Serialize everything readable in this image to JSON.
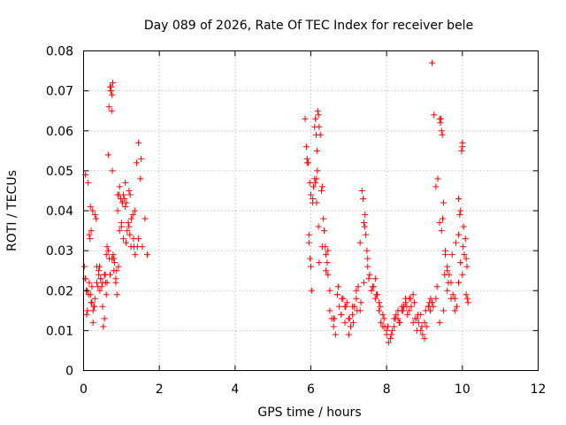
{
  "chart_data": {
    "type": "scatter",
    "title": "Day 089 of 2026, Rate Of TEC Index for receiver bele",
    "xlabel": "GPS time / hours",
    "ylabel": "ROTI / TECUs",
    "xlim": [
      0,
      12
    ],
    "ylim": [
      0,
      0.08
    ],
    "xticks": [
      "0",
      "2",
      "4",
      "6",
      "8",
      "10",
      "12"
    ],
    "yticks": [
      "0",
      "0.01",
      "0.02",
      "0.03",
      "0.04",
      "0.05",
      "0.06",
      "0.07",
      "0.08"
    ],
    "grid": true,
    "marker": "plus",
    "color": "#ff0000",
    "series": [
      {
        "name": "ROTI",
        "x": [
          0.02,
          0.04,
          0.05,
          0.07,
          0.1,
          0.12,
          0.13,
          0.15,
          0.17,
          0.18,
          0.2,
          0.22,
          0.24,
          0.25,
          0.27,
          0.3,
          0.33,
          0.35,
          0.38,
          0.4,
          0.43,
          0.45,
          0.48,
          0.5,
          0.52,
          0.55,
          0.57,
          0.6,
          0.62,
          0.65,
          0.67,
          0.7,
          0.72,
          0.74,
          0.76,
          0.78,
          0.8,
          0.82,
          0.85,
          0.87,
          0.9,
          0.93,
          0.95,
          0.98,
          1.0,
          1.03,
          1.05,
          1.08,
          1.1,
          1.13,
          1.15,
          1.18,
          1.2,
          1.23,
          1.26,
          1.3,
          1.33,
          1.36,
          1.4,
          1.45,
          1.5,
          1.55,
          1.62,
          1.68,
          0.1,
          0.15,
          0.2,
          0.25,
          0.3,
          0.35,
          0.4,
          0.5,
          0.55,
          0.6,
          0.65,
          0.7,
          0.75,
          0.8,
          0.85,
          0.9,
          0.95,
          1.0,
          1.05,
          1.1,
          1.2,
          1.25,
          1.35,
          1.45,
          0.08,
          0.18,
          0.28,
          0.45,
          0.62,
          0.72,
          0.73,
          0.75,
          0.77,
          0.92,
          1.02,
          1.22,
          1.42,
          1.52,
          0.05,
          0.22,
          0.42,
          0.58,
          0.68,
          0.88,
          1.12,
          1.32,
          5.85,
          5.88,
          5.9,
          5.93,
          5.95,
          5.98,
          6.0,
          6.02,
          6.05,
          6.07,
          6.1,
          6.12,
          6.15,
          6.17,
          6.2,
          6.22,
          6.25,
          6.28,
          6.3,
          6.33,
          6.35,
          6.38,
          6.4,
          6.43,
          6.45,
          6.5,
          6.55,
          6.6,
          6.65,
          6.7,
          6.75,
          6.8,
          6.85,
          6.9,
          6.95,
          7.0,
          7.05,
          7.1,
          7.15,
          7.2,
          7.25,
          7.3,
          7.35,
          7.38,
          7.4,
          7.42,
          7.45,
          7.48,
          7.5,
          7.55,
          7.6,
          7.65,
          7.7,
          7.75,
          7.8,
          7.85,
          7.9,
          7.95,
          8.0,
          8.05,
          8.1,
          8.15,
          8.2,
          8.25,
          8.3,
          8.35,
          8.4,
          8.45,
          8.5,
          8.55,
          8.6,
          8.65,
          8.7,
          8.75,
          8.8,
          8.85,
          8.9,
          8.95,
          9.0,
          9.05,
          9.1,
          9.15,
          9.2,
          9.25,
          9.3,
          9.35,
          9.4,
          9.42,
          9.45,
          9.48,
          9.5,
          9.55,
          9.6,
          9.65,
          9.7,
          9.75,
          9.8,
          9.85,
          9.9,
          9.95,
          10.0,
          10.02,
          10.05,
          10.08,
          10.1,
          10.12,
          10.15,
          5.9,
          5.95,
          6.0,
          6.05,
          6.1,
          6.15,
          6.2,
          6.3,
          6.4,
          6.5,
          6.6,
          6.7,
          6.8,
          6.9,
          7.0,
          7.1,
          7.2,
          7.3,
          7.4,
          7.5,
          7.6,
          7.7,
          7.8,
          7.9,
          8.0,
          8.1,
          8.2,
          8.3,
          8.4,
          8.5,
          8.6,
          8.7,
          8.8,
          8.9,
          9.0,
          9.1,
          9.2,
          9.3,
          9.4,
          9.5,
          9.6,
          9.7,
          9.8,
          9.9,
          10.0,
          10.1,
          6.12,
          6.14,
          6.16,
          6.18,
          9.16,
          9.43,
          9.45,
          9.47,
          9.98,
          10.0,
          9.4,
          9.55,
          9.6,
          9.9,
          9.95,
          5.97,
          6.22,
          6.45,
          6.62,
          6.72,
          6.82,
          6.92,
          7.02,
          7.12,
          7.22,
          7.32,
          7.43,
          7.53,
          7.63,
          7.73,
          7.83,
          7.93,
          8.03,
          8.13,
          8.23,
          8.33,
          8.43,
          8.53,
          8.63,
          8.73,
          8.83,
          8.93,
          9.03,
          9.13,
          9.23,
          9.33,
          9.53,
          9.63,
          9.73,
          9.83,
          9.93,
          10.03,
          10.13
        ],
        "y": [
          0.026,
          0.023,
          0.049,
          0.02,
          0.015,
          0.047,
          0.019,
          0.034,
          0.033,
          0.041,
          0.035,
          0.017,
          0.04,
          0.012,
          0.016,
          0.039,
          0.038,
          0.022,
          0.021,
          0.025,
          0.02,
          0.023,
          0.021,
          0.016,
          0.011,
          0.013,
          0.024,
          0.029,
          0.031,
          0.054,
          0.066,
          0.071,
          0.07,
          0.065,
          0.05,
          0.029,
          0.028,
          0.027,
          0.022,
          0.025,
          0.04,
          0.044,
          0.046,
          0.043,
          0.037,
          0.042,
          0.044,
          0.043,
          0.047,
          0.042,
          0.035,
          0.037,
          0.045,
          0.044,
          0.038,
          0.039,
          0.031,
          0.029,
          0.052,
          0.057,
          0.048,
          0.031,
          0.038,
          0.029,
          0.02,
          0.022,
          0.017,
          0.015,
          0.018,
          0.026,
          0.024,
          0.022,
          0.024,
          0.019,
          0.03,
          0.024,
          0.028,
          0.025,
          0.023,
          0.044,
          0.035,
          0.036,
          0.033,
          0.041,
          0.036,
          0.031,
          0.04,
          0.033,
          0.014,
          0.019,
          0.016,
          0.023,
          0.022,
          0.07,
          0.071,
          0.069,
          0.072,
          0.026,
          0.042,
          0.034,
          0.031,
          0.053,
          0.023,
          0.021,
          0.026,
          0.022,
          0.028,
          0.019,
          0.032,
          0.033,
          0.063,
          0.056,
          0.053,
          0.052,
          0.032,
          0.028,
          0.026,
          0.02,
          0.043,
          0.046,
          0.048,
          0.047,
          0.042,
          0.05,
          0.064,
          0.061,
          0.059,
          0.045,
          0.046,
          0.038,
          0.035,
          0.031,
          0.029,
          0.027,
          0.024,
          0.02,
          0.013,
          0.011,
          0.009,
          0.019,
          0.016,
          0.014,
          0.018,
          0.016,
          0.017,
          0.013,
          0.011,
          0.014,
          0.016,
          0.02,
          0.021,
          0.032,
          0.045,
          0.043,
          0.037,
          0.036,
          0.034,
          0.03,
          0.028,
          0.024,
          0.02,
          0.021,
          0.023,
          0.019,
          0.017,
          0.012,
          0.014,
          0.011,
          0.009,
          0.007,
          0.008,
          0.01,
          0.013,
          0.014,
          0.015,
          0.012,
          0.015,
          0.016,
          0.017,
          0.014,
          0.018,
          0.016,
          0.019,
          0.013,
          0.01,
          0.012,
          0.014,
          0.009,
          0.008,
          0.011,
          0.016,
          0.015,
          0.077,
          0.064,
          0.046,
          0.048,
          0.063,
          0.062,
          0.035,
          0.038,
          0.042,
          0.03,
          0.026,
          0.024,
          0.022,
          0.019,
          0.018,
          0.016,
          0.043,
          0.04,
          0.056,
          0.031,
          0.029,
          0.033,
          0.028,
          0.026,
          0.017,
          0.052,
          0.034,
          0.044,
          0.042,
          0.061,
          0.048,
          0.036,
          0.031,
          0.025,
          0.015,
          0.013,
          0.019,
          0.014,
          0.012,
          0.009,
          0.016,
          0.018,
          0.015,
          0.022,
          0.026,
          0.02,
          0.018,
          0.015,
          0.011,
          0.01,
          0.008,
          0.011,
          0.013,
          0.016,
          0.018,
          0.015,
          0.012,
          0.013,
          0.01,
          0.012,
          0.016,
          0.017,
          0.018,
          0.012,
          0.015,
          0.02,
          0.018,
          0.015,
          0.022,
          0.024,
          0.019,
          0.063,
          0.059,
          0.055,
          0.065,
          0.018,
          0.063,
          0.06,
          0.059,
          0.055,
          0.057,
          0.037,
          0.029,
          0.025,
          0.034,
          0.027,
          0.047,
          0.027,
          0.03,
          0.013,
          0.021,
          0.018,
          0.016,
          0.013,
          0.012,
          0.015,
          0.017,
          0.039,
          0.023,
          0.021,
          0.019,
          0.016,
          0.013,
          0.011,
          0.009,
          0.013,
          0.012,
          0.015,
          0.016,
          0.018,
          0.017,
          0.014,
          0.011,
          0.015,
          0.017,
          0.016,
          0.021,
          0.024,
          0.022,
          0.029,
          0.032,
          0.039,
          0.036,
          0.018
        ]
      }
    ]
  }
}
